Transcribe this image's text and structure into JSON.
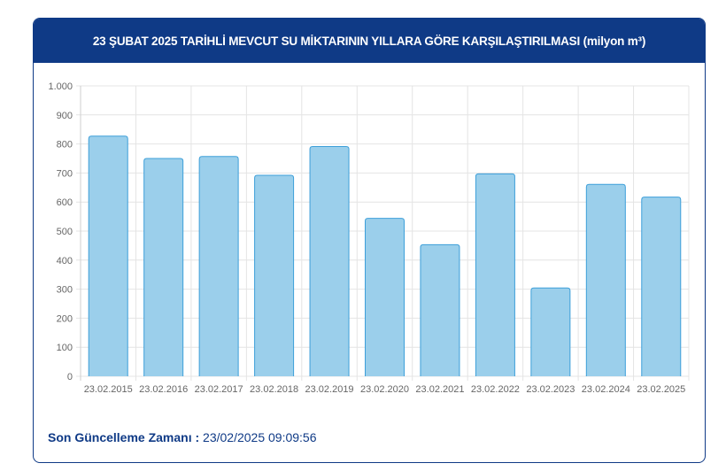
{
  "chart_data": {
    "type": "bar",
    "title": "23 ŞUBAT 2025 TARİHLİ MEVCUT SU MİKTARININ YILLARA GÖRE KARŞILAŞTIRILMASI (milyon m³)",
    "categories": [
      "23.02.2015",
      "23.02.2016",
      "23.02.2017",
      "23.02.2018",
      "23.02.2019",
      "23.02.2020",
      "23.02.2021",
      "23.02.2022",
      "23.02.2023",
      "23.02.2024",
      "23.02.2025"
    ],
    "values": [
      827,
      750,
      757,
      692,
      791,
      544,
      453,
      697,
      304,
      661,
      617
    ],
    "ylim": [
      0,
      1000
    ],
    "yticks": [
      0,
      100,
      200,
      300,
      400,
      500,
      600,
      700,
      800,
      900,
      1000
    ],
    "ytick_labels": [
      "0",
      "100",
      "200",
      "300",
      "400",
      "500",
      "600",
      "700",
      "800",
      "900",
      "1.000"
    ],
    "xlabel": "",
    "ylabel": "",
    "grid": true,
    "bar_fill": "#9bcfeb",
    "bar_stroke": "#3d9fd9"
  },
  "footer": {
    "label": "Son Güncelleme Zamanı :",
    "value": "23/02/2025 09:09:56"
  },
  "colors": {
    "header": "#0f3a86"
  }
}
